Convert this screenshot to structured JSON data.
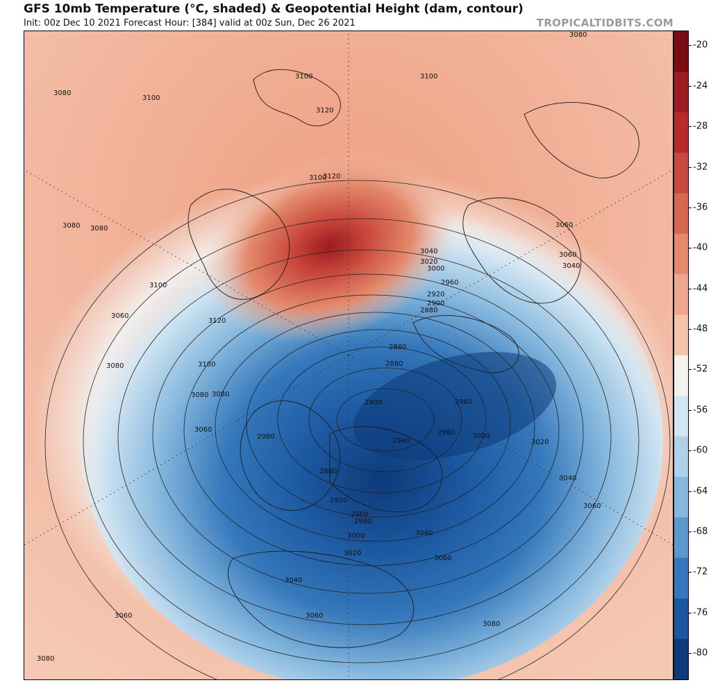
{
  "header": {
    "title": "GFS 10mb Temperature (°C, shaded) & Geopotential Height (dam, contour)",
    "subtitle": "Init: 00z Dec 10 2021   Forecast Hour: [384]   valid at 00z Sun, Dec 26 2021",
    "credit": "TROPICALTIDBITS.COM"
  },
  "colorbar": {
    "labels": [
      "-20",
      "-24",
      "-28",
      "-32",
      "-36",
      "-40",
      "-44",
      "-48",
      "-52",
      "-56",
      "-60",
      "-64",
      "-68",
      "-72",
      "-76",
      "-80"
    ],
    "colors": [
      "#7a0d12",
      "#9c1a20",
      "#b72c2a",
      "#c9493c",
      "#d8674f",
      "#e48a6c",
      "#eea78c",
      "#f5c4ad",
      "#f4f1ef",
      "#d2e5f2",
      "#aed0e9",
      "#86b8de",
      "#5a99cd",
      "#3578bb",
      "#1c58a0",
      "#0d3a7a"
    ],
    "accent_colors": {
      "warm": "#d8674f",
      "cold": "#3578bb",
      "neutral": "#f4f1ef"
    }
  },
  "map": {
    "projection": "north-polar-stereographic",
    "contour_labels": [
      {
        "label": "3080"
      },
      {
        "label": "3100"
      },
      {
        "label": "3120"
      },
      {
        "label": "3080"
      },
      {
        "label": "3100"
      },
      {
        "label": "3120"
      },
      {
        "label": "3100"
      },
      {
        "label": "3080"
      },
      {
        "label": "3060"
      },
      {
        "label": "3040"
      },
      {
        "label": "3020"
      },
      {
        "label": "3000"
      },
      {
        "label": "2960"
      },
      {
        "label": "2920"
      },
      {
        "label": "2900"
      },
      {
        "label": "2880"
      },
      {
        "label": "2860"
      },
      {
        "label": "2880"
      },
      {
        "label": "2900"
      },
      {
        "label": "2940"
      },
      {
        "label": "2960"
      },
      {
        "label": "2980"
      },
      {
        "label": "3000"
      },
      {
        "label": "3020"
      },
      {
        "label": "3040"
      },
      {
        "label": "3060"
      },
      {
        "label": "2980"
      },
      {
        "label": "2880"
      },
      {
        "label": "2920"
      },
      {
        "label": "2960"
      },
      {
        "label": "2980"
      },
      {
        "label": "3000"
      },
      {
        "label": "3020"
      },
      {
        "label": "3040"
      },
      {
        "label": "3040"
      },
      {
        "label": "3060"
      },
      {
        "label": "3060"
      },
      {
        "label": "3060"
      },
      {
        "label": "3080"
      },
      {
        "label": "3080"
      },
      {
        "label": "3080"
      },
      {
        "label": "3100"
      },
      {
        "label": "3100"
      },
      {
        "label": "3080"
      },
      {
        "label": "3060"
      },
      {
        "label": "3040"
      },
      {
        "label": "2980"
      },
      {
        "label": "3060"
      },
      {
        "label": "3080"
      },
      {
        "label": "3080"
      },
      {
        "label": "3080"
      },
      {
        "label": "3100"
      },
      {
        "label": "3120"
      },
      {
        "label": "3080"
      },
      {
        "label": "3060"
      },
      {
        "label": "3080"
      }
    ]
  }
}
